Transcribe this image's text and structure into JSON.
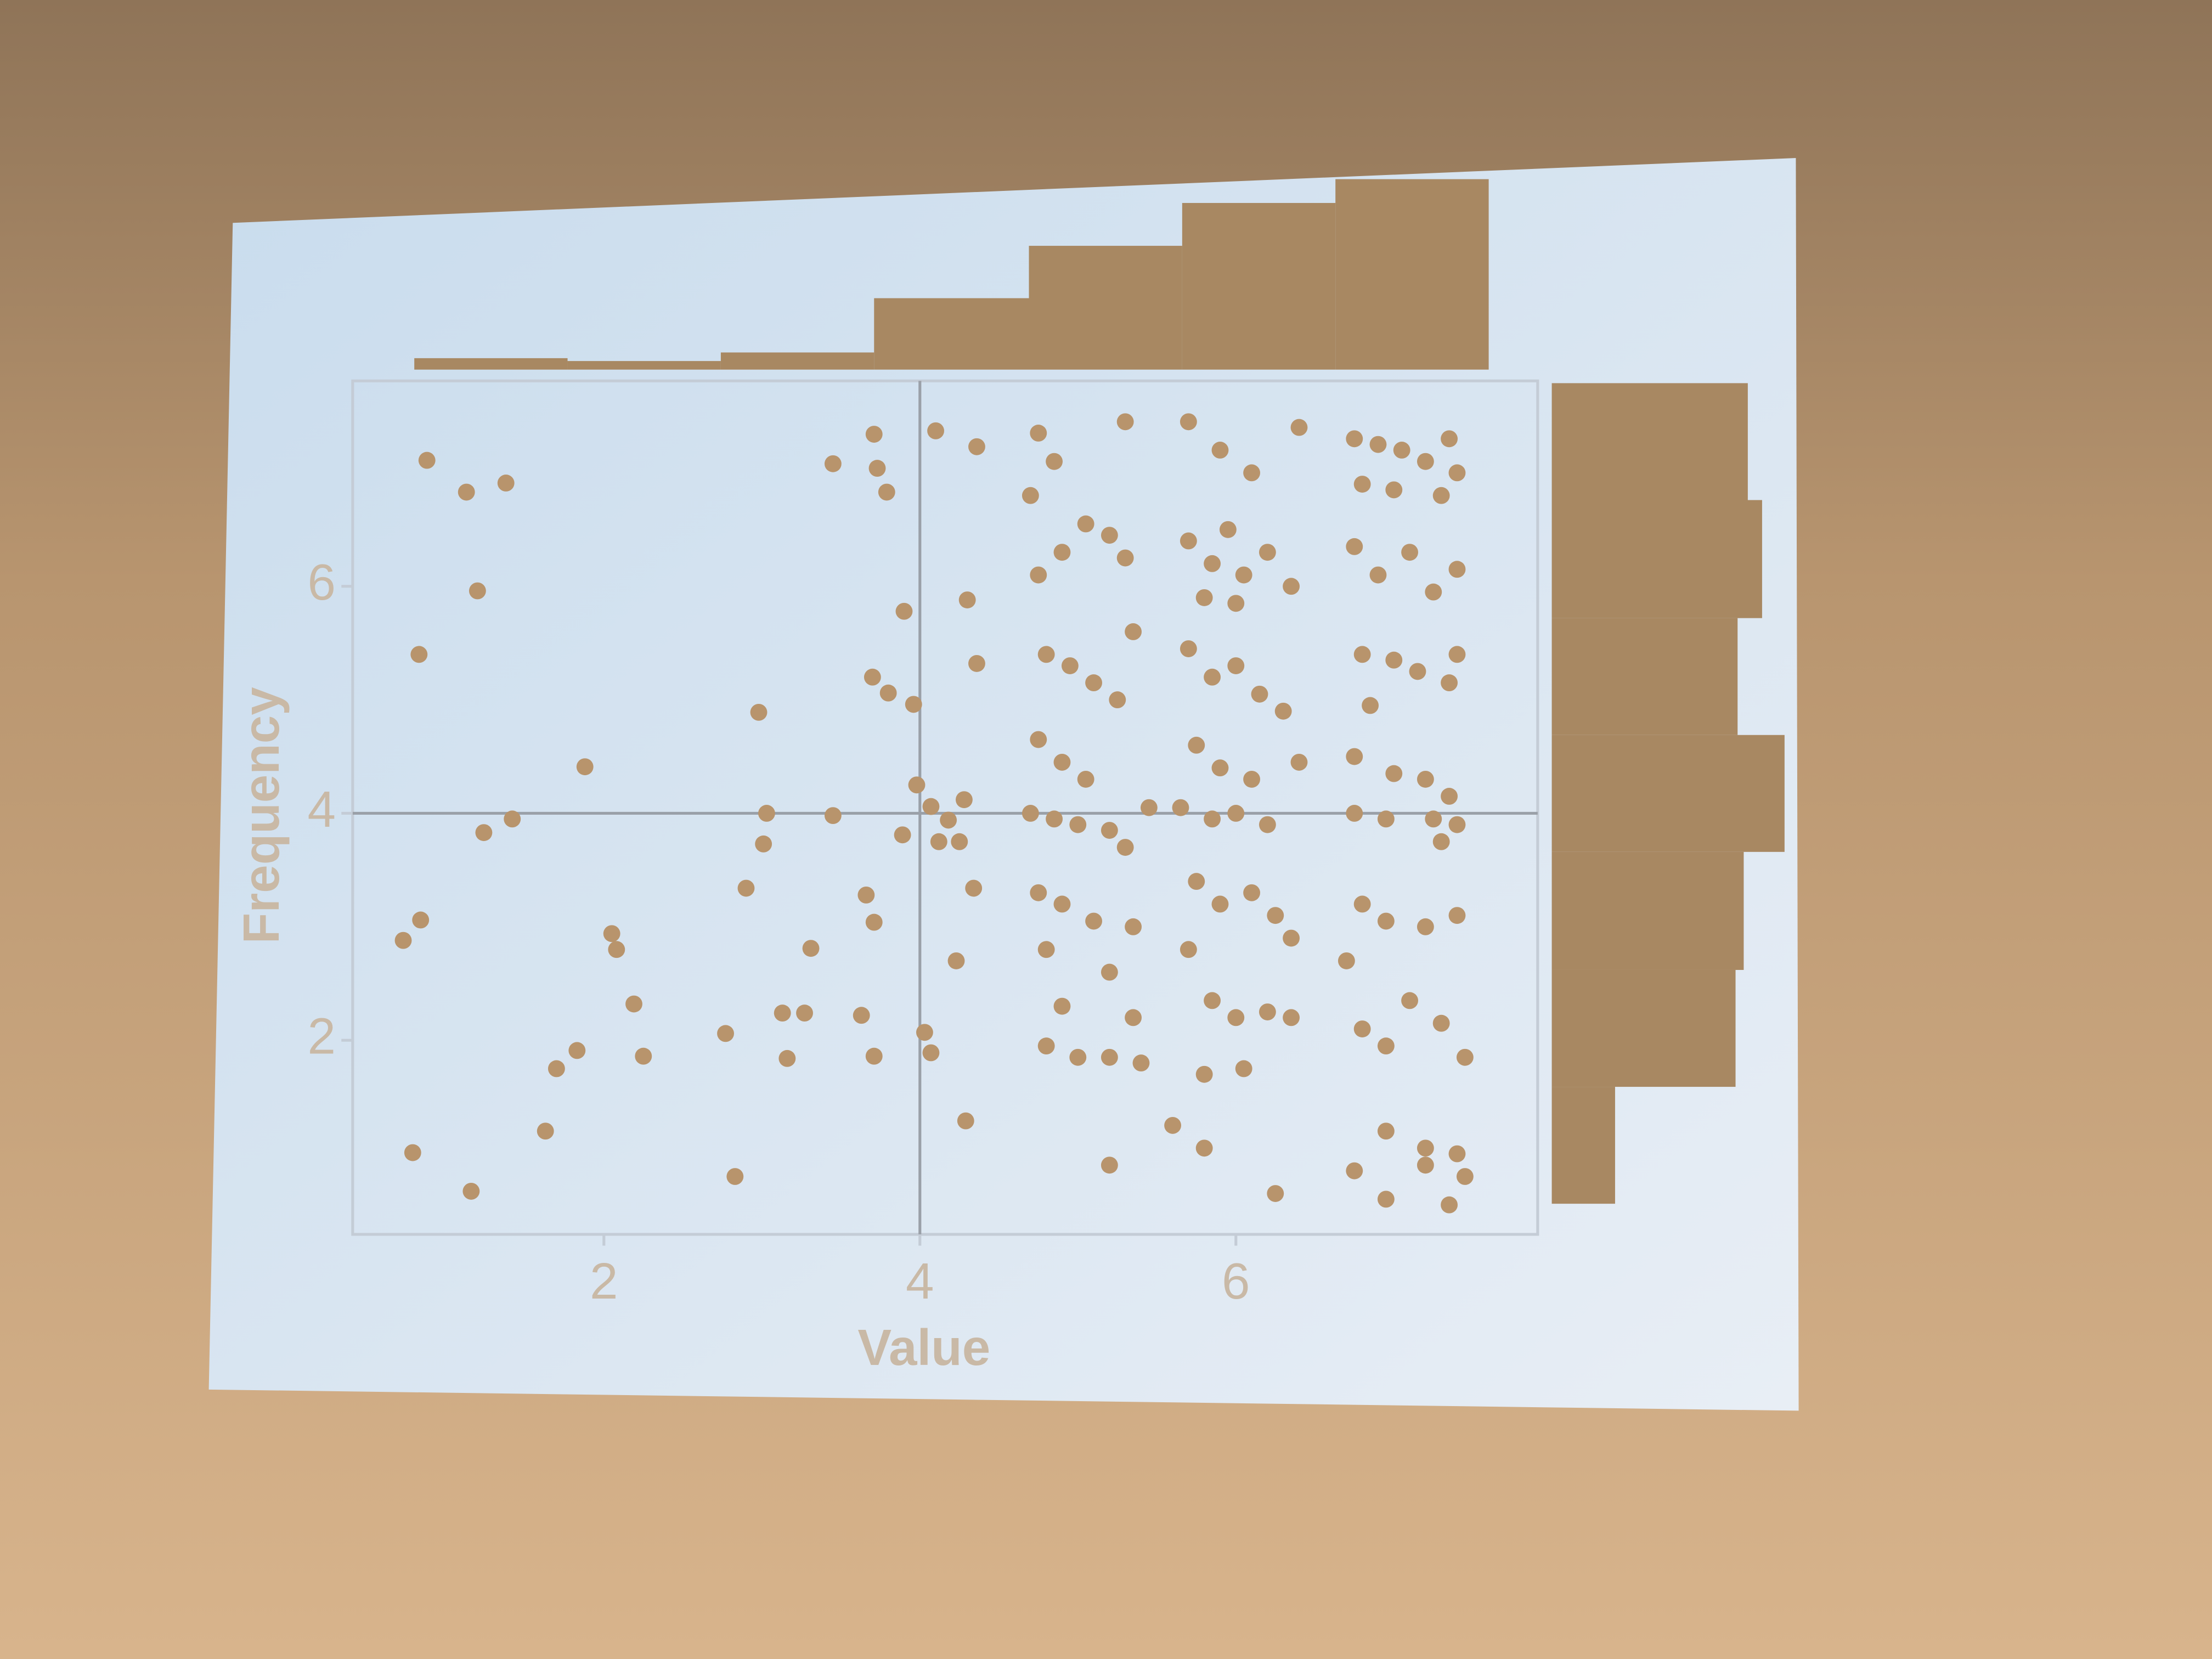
{
  "chart_data": [
    {
      "type": "scatter",
      "xlabel": "Value",
      "ylabel": "Frequency",
      "color": "#b8946c",
      "xlim": [
        0.41,
        7.91
      ],
      "ylim": [
        0.29,
        7.81
      ],
      "xticks": [
        2,
        4,
        6
      ],
      "yticks": [
        2,
        4,
        6
      ],
      "reference_lines": {
        "x": 4,
        "y": 4
      },
      "x": [
        0.88,
        1.13,
        1.38,
        1.2,
        0.83,
        1.88,
        1.42,
        1.24,
        0.84,
        0.73,
        2.05,
        2.08,
        2.19,
        2.25,
        1.83,
        1.7,
        1.63,
        0.79,
        1.16,
        2.83,
        2.77,
        2.9,
        3.01,
        3.03,
        2.98,
        3.31,
        3.13,
        3.27,
        3.16,
        3.45,
        3.63,
        3.71,
        3.66,
        3.71,
        3.45,
        3.71,
        3.73,
        3.79,
        4.1,
        3.9,
        3.7,
        3.8,
        3.96,
        3.98,
        4.07,
        4.18,
        4.28,
        3.89,
        4.12,
        4.25,
        4.03,
        4.07,
        4.29,
        4.34,
        4.23,
        4.3,
        4.36,
        4.36,
        4.75,
        4.85,
        4.7,
        4.9,
        4.75,
        5.05,
        5.2,
        5.3,
        4.8,
        4.95,
        5.1,
        5.25,
        4.75,
        4.9,
        5.05,
        4.7,
        4.85,
        5.0,
        5.2,
        5.3,
        4.75,
        4.9,
        5.1,
        4.8,
        5.2,
        4.9,
        4.8,
        5.0,
        5.2,
        5.2,
        5.3,
        5.35,
        5.45,
        5.35,
        5.35,
        5.4,
        5.7,
        5.9,
        6.1,
        6.4,
        5.7,
        5.85,
        5.95,
        6.05,
        6.2,
        6.35,
        5.8,
        6.0,
        5.7,
        5.85,
        6.0,
        6.15,
        6.3,
        5.75,
        5.9,
        6.1,
        6.4,
        5.65,
        5.85,
        6.0,
        6.2,
        5.75,
        5.9,
        6.1,
        6.25,
        6.35,
        5.7,
        5.85,
        6.0,
        6.2,
        6.35,
        5.8,
        6.05,
        5.6,
        5.8,
        6.25,
        6.75,
        6.9,
        7.05,
        7.2,
        7.35,
        7.4,
        6.8,
        7.0,
        7.3,
        6.75,
        6.9,
        7.1,
        7.25,
        7.4,
        6.8,
        7.0,
        7.15,
        7.35,
        6.85,
        7.4,
        6.75,
        7.0,
        7.2,
        7.35,
        6.75,
        6.95,
        7.25,
        7.4,
        7.3,
        6.8,
        6.95,
        7.2,
        7.4,
        6.7,
        6.8,
        6.95,
        7.1,
        7.3,
        7.45,
        6.95,
        7.2,
        7.4,
        6.75,
        6.95,
        7.2,
        7.35,
        7.45
      ],
      "y": [
        7.11,
        6.83,
        6.91,
        5.96,
        5.4,
        4.41,
        3.95,
        3.83,
        3.06,
        2.88,
        2.94,
        2.8,
        2.32,
        1.86,
        1.91,
        1.75,
        1.2,
        1.01,
        0.67,
        0.8,
        2.06,
        3.34,
        3.73,
        4.0,
        4.89,
        2.81,
        2.24,
        2.24,
        1.84,
        3.98,
        2.22,
        1.86,
        3.28,
        3.04,
        7.08,
        7.34,
        7.04,
        6.83,
        7.37,
        5.78,
        5.2,
        5.06,
        4.96,
        4.25,
        4.06,
        3.94,
        4.12,
        3.81,
        3.75,
        3.75,
        2.07,
        1.89,
        1.29,
        3.34,
        2.7,
        5.88,
        5.32,
        7.23,
        7.35,
        7.1,
        6.8,
        6.3,
        6.1,
        6.55,
        6.45,
        6.25,
        5.4,
        5.3,
        5.15,
        5.0,
        4.65,
        4.45,
        4.3,
        4.0,
        3.95,
        3.9,
        3.85,
        3.7,
        3.3,
        3.2,
        3.05,
        2.8,
        2.6,
        2.3,
        1.95,
        1.85,
        1.85,
        0.9,
        7.45,
        5.6,
        4.05,
        3.0,
        2.2,
        1.8,
        7.45,
        7.2,
        7.0,
        7.4,
        6.4,
        6.2,
        6.5,
        6.1,
        6.3,
        6.0,
        5.9,
        5.85,
        5.45,
        5.2,
        5.3,
        5.05,
        4.9,
        4.6,
        4.4,
        4.3,
        4.45,
        4.05,
        3.95,
        4.0,
        3.9,
        3.4,
        3.2,
        3.3,
        3.1,
        2.9,
        2.8,
        2.35,
        2.2,
        2.25,
        2.2,
        1.7,
        1.75,
        1.25,
        1.05,
        0.65,
        7.3,
        7.25,
        7.2,
        7.1,
        7.3,
        7.0,
        6.9,
        6.85,
        6.8,
        6.35,
        6.1,
        6.3,
        5.95,
        6.15,
        5.4,
        5.35,
        5.25,
        5.15,
        4.95,
        5.4,
        4.5,
        4.35,
        4.3,
        4.15,
        4.0,
        3.95,
        3.95,
        3.9,
        3.75,
        3.2,
        3.05,
        3.0,
        3.1,
        2.7,
        2.1,
        1.95,
        2.35,
        2.15,
        1.85,
        1.2,
        1.05,
        1.0,
        0.85,
        0.6,
        0.9,
        0.55,
        0.8
      ]
    },
    {
      "type": "histogram",
      "orientation": "vertical",
      "color": "#a88862",
      "bins": [
        0.8,
        1.77,
        2.74,
        3.71,
        4.69,
        5.66,
        6.63,
        7.6
      ],
      "counts": [
        12,
        9,
        18,
        75,
        130,
        175,
        200
      ]
    },
    {
      "type": "histogram",
      "orientation": "horizontal",
      "color": "#a88862",
      "bins": [
        0.56,
        1.59,
        2.62,
        3.66,
        4.69,
        5.72,
        6.76,
        7.79
      ],
      "counts": [
        31,
        90,
        94,
        114,
        91,
        103,
        96
      ]
    }
  ]
}
